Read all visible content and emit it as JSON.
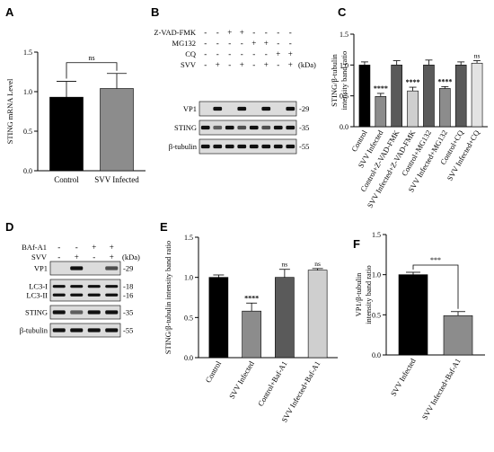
{
  "colors": {
    "black": "#000000",
    "dark_gray": "#5a5a5a",
    "mid_gray": "#8c8c8c",
    "light_gray": "#cfcfcf",
    "lighter_gray": "#e3e3e3"
  },
  "chart_data": [
    {
      "panel": "A",
      "type": "bar",
      "categories": [
        "Control",
        "SVV Infected"
      ],
      "values": [
        0.93,
        1.04
      ],
      "errors": [
        0.2,
        0.19
      ],
      "bar_colors": [
        "#000000",
        "#8c8c8c"
      ],
      "ylabel": "STING mRNA Level",
      "ylim": [
        0,
        1.5
      ],
      "yticks": [
        "0.0",
        "0.5",
        "1.0",
        "1.5"
      ],
      "annotations": [
        {
          "text": "ns",
          "between": [
            0,
            1
          ]
        }
      ]
    },
    {
      "panel": "C",
      "type": "bar",
      "categories": [
        "Control",
        "SVV Infected",
        "Control+Z-VAD-FMK",
        "SVV Infected+Z-VAD-FMK",
        "Control+MG132",
        "SVV Infected+MG132",
        "Control+CQ",
        "SVV Infected+CQ"
      ],
      "values": [
        1.0,
        0.49,
        1.0,
        0.58,
        1.0,
        0.62,
        1.0,
        1.03
      ],
      "errors": [
        0.05,
        0.05,
        0.07,
        0.06,
        0.08,
        0.03,
        0.05,
        0.04
      ],
      "bar_colors": [
        "#000000",
        "#8c8c8c",
        "#5a5a5a",
        "#cfcfcf",
        "#5a5a5a",
        "#8c8c8c",
        "#5a5a5a",
        "#e3e3e3"
      ],
      "ylabel": "STING/β-tubulin intensity band ratio",
      "ylim": [
        0,
        1.5
      ],
      "yticks": [
        "0.0",
        "0.5",
        "1.0",
        "1.5"
      ],
      "annotations": [
        {
          "text": "****",
          "bar": 1
        },
        {
          "text": "****",
          "bar": 3
        },
        {
          "text": "****",
          "bar": 5
        },
        {
          "text": "ns",
          "bar": 7
        }
      ]
    },
    {
      "panel": "E",
      "type": "bar",
      "categories": [
        "Control",
        "SVV Infected",
        "Control+Baf-A1",
        "SVV Infected+Baf-A1"
      ],
      "values": [
        1.0,
        0.58,
        1.0,
        1.09
      ],
      "errors": [
        0.03,
        0.1,
        0.1,
        0.02
      ],
      "bar_colors": [
        "#000000",
        "#8c8c8c",
        "#5a5a5a",
        "#cfcfcf"
      ],
      "ylabel": "STING/β-tubulin intensity band ratio",
      "ylim": [
        0,
        1.5
      ],
      "yticks": [
        "0.0",
        "0.5",
        "1.0",
        "1.5"
      ],
      "annotations": [
        {
          "text": "****",
          "bar": 1
        },
        {
          "text": "ns",
          "bar": 2
        },
        {
          "text": "ns",
          "bar": 3
        }
      ]
    },
    {
      "panel": "F",
      "type": "bar",
      "categories": [
        "SVV Infected",
        "SVV Infected+Baf-A1"
      ],
      "values": [
        1.0,
        0.49
      ],
      "errors": [
        0.03,
        0.05
      ],
      "bar_colors": [
        "#000000",
        "#8c8c8c"
      ],
      "ylabel": "VP1/β-tubulin intensity band ratio",
      "ylim": [
        0,
        1.5
      ],
      "yticks": [
        "0.0",
        "0.5",
        "1.0",
        "1.5"
      ],
      "annotations": [
        {
          "text": "***",
          "between": [
            0,
            1
          ]
        }
      ]
    }
  ],
  "blots": [
    {
      "panel": "B",
      "treatments": [
        {
          "label": "Z-VAD-FMK",
          "signs": [
            "-",
            "-",
            "+",
            "+",
            "-",
            "-",
            "-",
            "-"
          ]
        },
        {
          "label": "MG132",
          "signs": [
            "-",
            "-",
            "-",
            "-",
            "+",
            "+",
            "-",
            "-"
          ]
        },
        {
          "label": "CQ",
          "signs": [
            "-",
            "-",
            "-",
            "-",
            "-",
            "-",
            "+",
            "+"
          ]
        },
        {
          "label": "SVV",
          "signs": [
            "-",
            "+",
            "-",
            "+",
            "-",
            "+",
            "-",
            "+"
          ]
        }
      ],
      "unit": "(kDa)",
      "rows": [
        {
          "label": "VP1",
          "kda": "29",
          "bands": [
            0,
            1,
            0,
            1,
            0,
            1,
            0,
            1
          ]
        },
        {
          "label": "STING",
          "kda": "35",
          "bands": [
            1,
            0.5,
            1,
            0.6,
            1,
            0.6,
            1,
            1
          ]
        },
        {
          "label": "β-tubulin",
          "kda": "55",
          "bands": [
            1,
            1,
            1,
            1,
            1,
            1,
            1,
            1
          ]
        }
      ]
    },
    {
      "panel": "D",
      "treatments": [
        {
          "label": "BAf-A1",
          "signs": [
            "-",
            "-",
            "+",
            "+"
          ]
        },
        {
          "label": "SVV",
          "signs": [
            "-",
            "+",
            "-",
            "+"
          ]
        }
      ],
      "unit": "(kDa)",
      "rows": [
        {
          "label": "VP1",
          "kda": "29",
          "bands": [
            0,
            1,
            0,
            0.6
          ]
        },
        {
          "label": "LC3-I",
          "kda": "18",
          "label2": "LC3-II",
          "kda2": "16",
          "double": true,
          "bands": [
            1,
            1,
            1,
            1
          ]
        },
        {
          "label": "STING",
          "kda": "35",
          "bands": [
            1,
            0.5,
            1,
            1
          ]
        },
        {
          "label": "β-tubulin",
          "kda": "55",
          "bands": [
            1,
            1,
            1,
            1
          ]
        }
      ]
    }
  ]
}
